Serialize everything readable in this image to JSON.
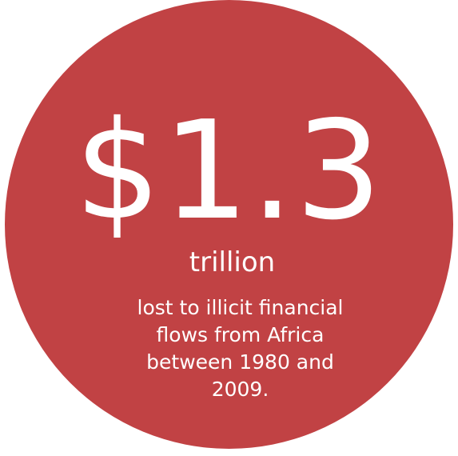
{
  "stat": {
    "amount": "$1.3",
    "unit": "trillion",
    "description_lines": [
      "lost to illicit financial",
      "flows from Africa",
      "between 1980 and",
      "2009."
    ]
  },
  "colors": {
    "circle": "#c14244",
    "text": "#ffffff",
    "background": "#ffffff"
  }
}
